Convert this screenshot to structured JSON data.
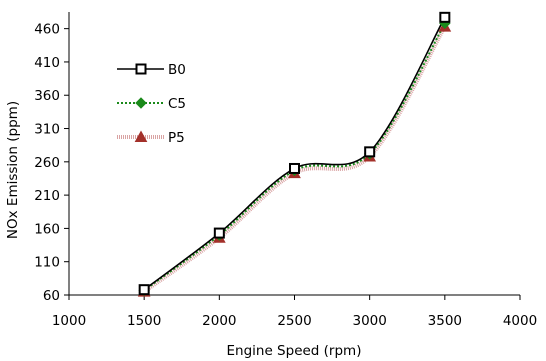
{
  "chart_data": {
    "type": "line",
    "xlabel": "Engine Speed (rpm)",
    "ylabel": "NOx Emission (ppm)",
    "xlim": [
      1000,
      4000
    ],
    "ylim": [
      60,
      485
    ],
    "xticks": [
      1000,
      1500,
      2000,
      2500,
      3000,
      3500,
      4000
    ],
    "yticks": [
      60,
      110,
      160,
      210,
      260,
      310,
      360,
      410,
      460
    ],
    "grid": "none",
    "legend_position": "top-left",
    "x": [
      1500,
      2000,
      2500,
      3000,
      3500
    ],
    "series": [
      {
        "name": "B0",
        "values": [
          68,
          153,
          250,
          275,
          477
        ],
        "color": "#000000",
        "marker": "square",
        "line": "solid"
      },
      {
        "name": "C5",
        "values": [
          67,
          150,
          247,
          272,
          468
        ],
        "color": "#1a8a1a",
        "marker": "diamond",
        "line": "dotted"
      },
      {
        "name": "P5",
        "values": [
          65,
          146,
          243,
          268,
          463
        ],
        "color": "#a3302a",
        "marker": "triangle",
        "line": "band"
      }
    ]
  }
}
